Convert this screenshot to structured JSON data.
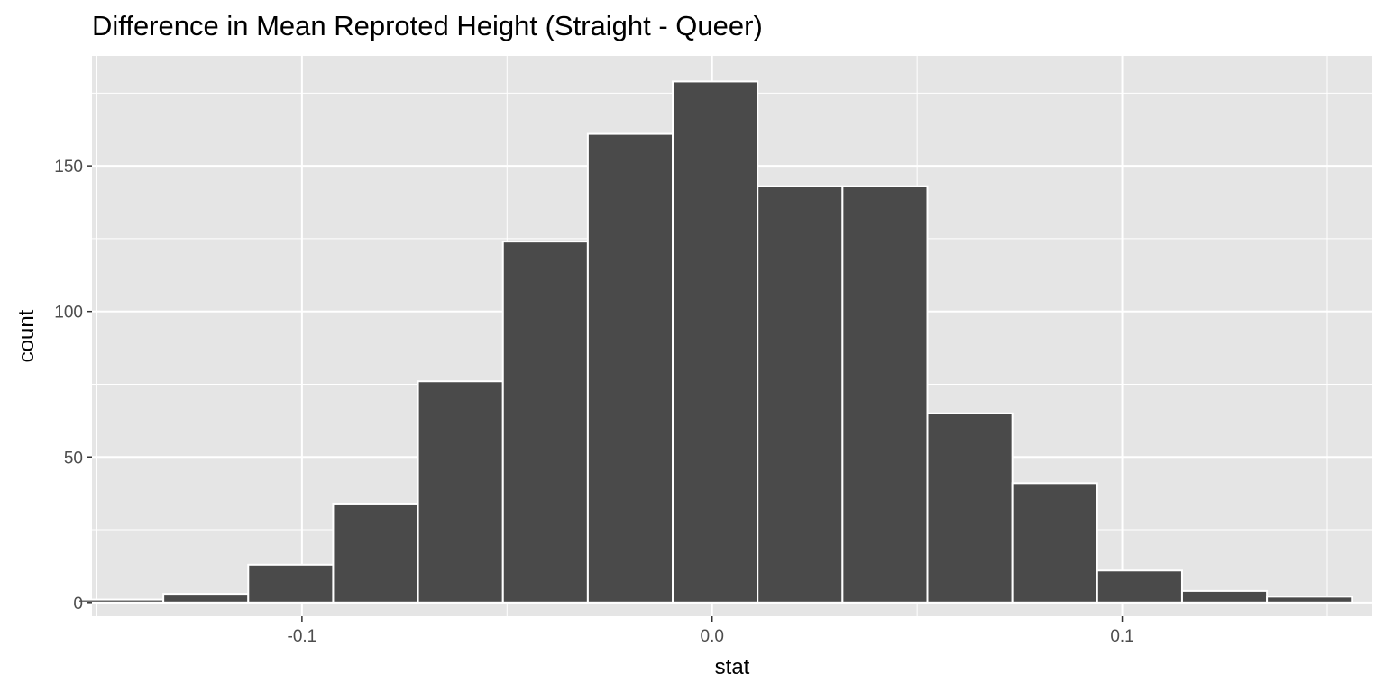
{
  "chart_data": {
    "type": "histogram",
    "title": "Difference in Mean Reproted Height (Straight - Queer)",
    "xlabel": "stat",
    "ylabel": "count",
    "xlim": [
      -0.1545,
      0.1645
    ],
    "ylim": [
      -5,
      188
    ],
    "x_ticks": [
      -0.1,
      0.0,
      0.1
    ],
    "x_tick_labels": [
      "-0.1",
      "0.0",
      "0.1"
    ],
    "y_ticks": [
      0,
      50,
      100,
      150
    ],
    "y_tick_labels": [
      "0",
      "50",
      "100",
      "150"
    ],
    "x_minor_ticks": [
      -0.15,
      -0.05,
      0.05,
      0.15
    ],
    "y_minor_ticks": [
      25,
      75,
      125,
      175
    ],
    "bin_width": 0.0207,
    "bins": [
      {
        "x0": -0.1545,
        "x1": -0.1338,
        "count": 1
      },
      {
        "x0": -0.1338,
        "x1": -0.1131,
        "count": 3
      },
      {
        "x0": -0.1131,
        "x1": -0.0924,
        "count": 13
      },
      {
        "x0": -0.0924,
        "x1": -0.0717,
        "count": 34
      },
      {
        "x0": -0.0717,
        "x1": -0.051,
        "count": 76
      },
      {
        "x0": -0.051,
        "x1": -0.0303,
        "count": 124
      },
      {
        "x0": -0.0303,
        "x1": -0.0096,
        "count": 161
      },
      {
        "x0": -0.0096,
        "x1": 0.0111,
        "count": 179
      },
      {
        "x0": 0.0111,
        "x1": 0.0318,
        "count": 143
      },
      {
        "x0": 0.0318,
        "x1": 0.0525,
        "count": 143
      },
      {
        "x0": 0.0525,
        "x1": 0.0732,
        "count": 65
      },
      {
        "x0": 0.0732,
        "x1": 0.0939,
        "count": 41
      },
      {
        "x0": 0.0939,
        "x1": 0.1146,
        "count": 11
      },
      {
        "x0": 0.1146,
        "x1": 0.1353,
        "count": 4
      },
      {
        "x0": 0.1353,
        "x1": 0.156,
        "count": 2
      }
    ],
    "grid": true,
    "legend": "none",
    "colors": {
      "panel_background": "#e5e5e5",
      "grid_line": "#ffffff",
      "bar_fill": "#4a4a4a",
      "bar_outline": "#ffffff",
      "tick_text": "#4d4d4d",
      "title_text": "#000000"
    }
  }
}
